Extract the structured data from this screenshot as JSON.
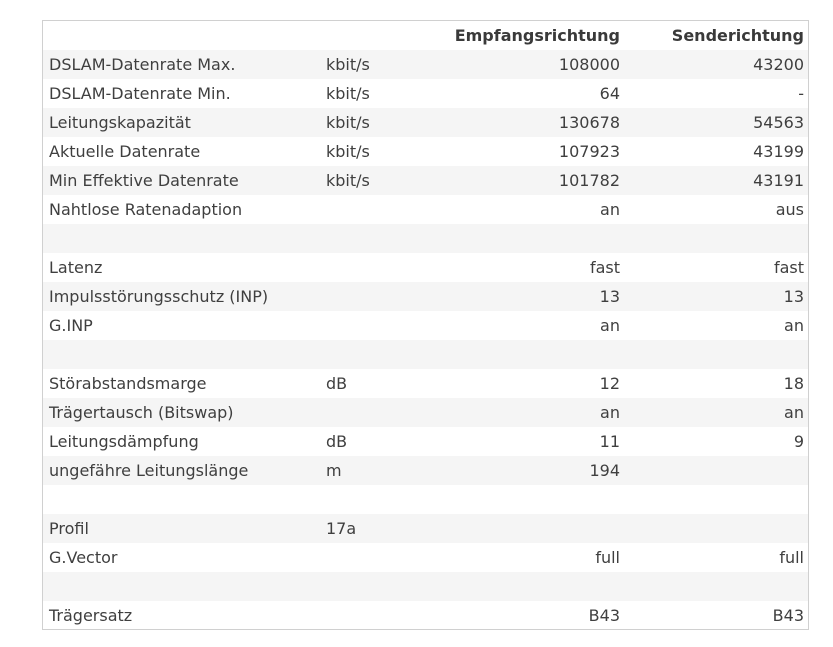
{
  "table": {
    "headers": {
      "label": "",
      "unit": "",
      "downstream": "Empfangsrichtung",
      "upstream": "Senderichtung"
    },
    "rows": [
      {
        "label": "DSLAM-Datenrate Max.",
        "unit": "kbit/s",
        "rx": "108000",
        "tx": "43200"
      },
      {
        "label": "DSLAM-Datenrate Min.",
        "unit": "kbit/s",
        "rx": "64",
        "tx": "-"
      },
      {
        "label": "Leitungskapazität",
        "unit": "kbit/s",
        "rx": "130678",
        "tx": "54563"
      },
      {
        "label": "Aktuelle Datenrate",
        "unit": "kbit/s",
        "rx": "107923",
        "tx": "43199"
      },
      {
        "label": "Min Effektive Datenrate",
        "unit": "kbit/s",
        "rx": "101782",
        "tx": "43191"
      },
      {
        "label": "Nahtlose Ratenadaption",
        "unit": "",
        "rx": "an",
        "tx": "aus"
      },
      {
        "label": "",
        "unit": "",
        "rx": "",
        "tx": ""
      },
      {
        "label": "Latenz",
        "unit": "",
        "rx": "fast",
        "tx": "fast"
      },
      {
        "label": "Impulsstörungsschutz (INP)",
        "unit": "",
        "rx": "13",
        "tx": "13"
      },
      {
        "label": "G.INP",
        "unit": "",
        "rx": "an",
        "tx": "an"
      },
      {
        "label": "",
        "unit": "",
        "rx": "",
        "tx": ""
      },
      {
        "label": "Störabstandsmarge",
        "unit": "dB",
        "rx": "12",
        "tx": "18"
      },
      {
        "label": "Trägertausch (Bitswap)",
        "unit": "",
        "rx": "an",
        "tx": "an"
      },
      {
        "label": "Leitungsdämpfung",
        "unit": "dB",
        "rx": "11",
        "tx": "9"
      },
      {
        "label": "ungefähre Leitungslänge",
        "unit": "m",
        "rx": "194",
        "tx": ""
      },
      {
        "label": "",
        "unit": "",
        "rx": "",
        "tx": ""
      },
      {
        "label": "Profil",
        "unit": "17a",
        "rx": "",
        "tx": ""
      },
      {
        "label": "G.Vector",
        "unit": "",
        "rx": "full",
        "tx": "full"
      },
      {
        "label": "",
        "unit": "",
        "rx": "",
        "tx": ""
      },
      {
        "label": "Trägersatz",
        "unit": "",
        "rx": "B43",
        "tx": "B43"
      }
    ]
  }
}
